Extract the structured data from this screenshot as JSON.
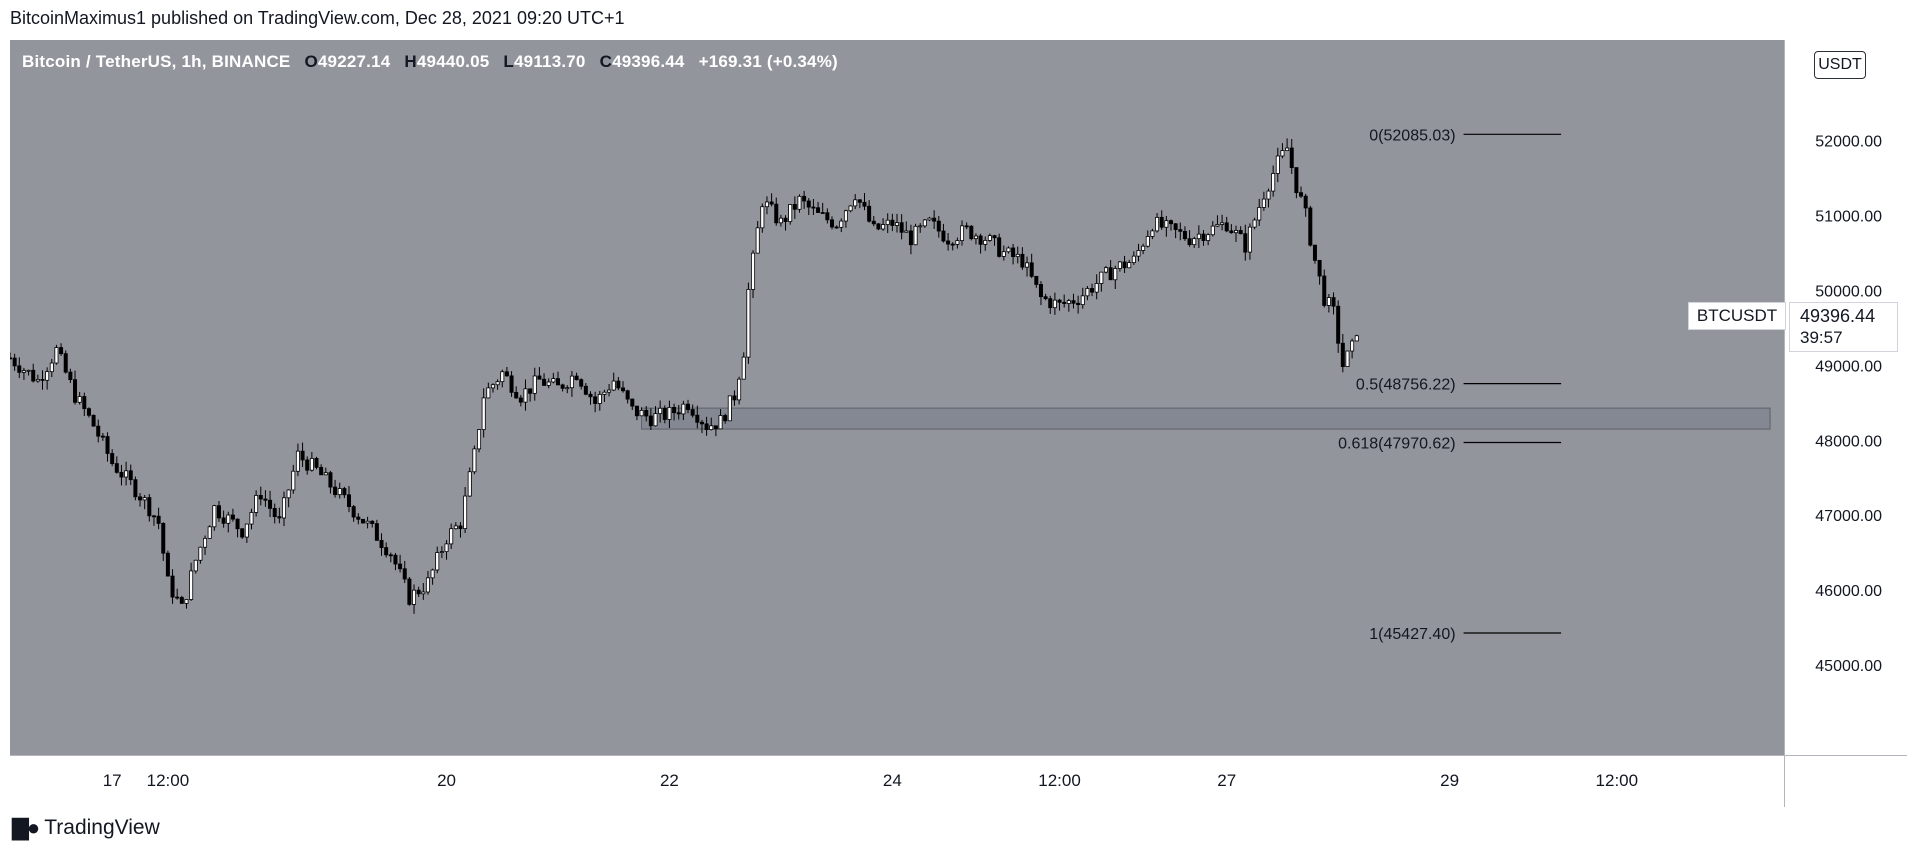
{
  "publisher_line": "BitcoinMaximus1 published on TradingView.com, Dec 28, 2021 09:20 UTC+1",
  "legend": {
    "symbol": "Bitcoin / TetherUS, 1h, BINANCE",
    "open_label": "O",
    "open": "49227.14",
    "high_label": "H",
    "high": "49440.05",
    "low_label": "L",
    "low": "49113.70",
    "close_label": "C",
    "close": "49396.44",
    "change": "+169.31 (+0.34%)"
  },
  "currency": "USDT",
  "last_price_tag": {
    "symbol": "BTCUSDT",
    "price": "49396.44",
    "countdown": "39:57"
  },
  "footer_brand": "TradingView",
  "colors": {
    "chart_background": "#93959d",
    "axis_background": "#ffffff",
    "candle": "#000000",
    "zone_fill": "#848892",
    "zone_border": "#5d6068",
    "fib_line": "#000000"
  },
  "chart_data": {
    "type": "candlestick",
    "interval": "1h",
    "ylim": [
      44800,
      52650
    ],
    "y_ticks": [
      {
        "value": 45000,
        "label": "45000.00"
      },
      {
        "value": 46000,
        "label": "46000.00"
      },
      {
        "value": 47000,
        "label": "47000.00"
      },
      {
        "value": 48000,
        "label": "48000.00"
      },
      {
        "value": 49000,
        "label": "49000.00"
      },
      {
        "value": 50000,
        "label": "50000.00"
      },
      {
        "value": 51000,
        "label": "51000.00"
      },
      {
        "value": 52000,
        "label": "52000.00"
      }
    ],
    "x_ticks": [
      {
        "hour": 0,
        "label": "17"
      },
      {
        "hour": 12,
        "label": "12:00"
      },
      {
        "hour": 72,
        "label": "20"
      },
      {
        "hour": 120,
        "label": "22"
      },
      {
        "hour": 168,
        "label": "24"
      },
      {
        "hour": 204,
        "label": "12:00"
      },
      {
        "hour": 240,
        "label": "27"
      },
      {
        "hour": 288,
        "label": "29"
      },
      {
        "hour": 324,
        "label": "12:00"
      }
    ],
    "x_range_hours": [
      -22,
      360
    ],
    "support_zone": {
      "low": 48150,
      "high": 48430,
      "start_hour": 114,
      "end_hour": 357
    },
    "fib_levels": [
      {
        "label": "0(52085.03)",
        "value": 52085.03,
        "start_hour": 291,
        "end_hour": 312
      },
      {
        "label": "0.5(48756.22)",
        "value": 48756.22,
        "start_hour": 291,
        "end_hour": 312
      },
      {
        "label": "0.618(47970.62)",
        "value": 47970.62,
        "start_hour": 291,
        "end_hour": 312
      },
      {
        "label": "1(45427.40)",
        "value": 45427.4,
        "start_hour": 291,
        "end_hour": 312
      }
    ],
    "price_path": [
      {
        "hour": -22,
        "close": 49100
      },
      {
        "hour": -16,
        "close": 48800
      },
      {
        "hour": -12,
        "close": 49200
      },
      {
        "hour": -8,
        "close": 48600
      },
      {
        "hour": -4,
        "close": 48200
      },
      {
        "hour": 0,
        "close": 47700
      },
      {
        "hour": 5,
        "close": 47350
      },
      {
        "hour": 8,
        "close": 47100
      },
      {
        "hour": 10,
        "close": 46900
      },
      {
        "hour": 12,
        "close": 46100
      },
      {
        "hour": 15,
        "close": 45750
      },
      {
        "hour": 18,
        "close": 46400
      },
      {
        "hour": 22,
        "close": 47100
      },
      {
        "hour": 28,
        "close": 46800
      },
      {
        "hour": 32,
        "close": 47300
      },
      {
        "hour": 36,
        "close": 46900
      },
      {
        "hour": 40,
        "close": 47800
      },
      {
        "hour": 44,
        "close": 47600
      },
      {
        "hour": 50,
        "close": 47200
      },
      {
        "hour": 56,
        "close": 46800
      },
      {
        "hour": 60,
        "close": 46500
      },
      {
        "hour": 64,
        "close": 45900
      },
      {
        "hour": 68,
        "close": 46100
      },
      {
        "hour": 72,
        "close": 46700
      },
      {
        "hour": 75,
        "close": 46900
      },
      {
        "hour": 78,
        "close": 47800
      },
      {
        "hour": 80,
        "close": 48600
      },
      {
        "hour": 84,
        "close": 48900
      },
      {
        "hour": 88,
        "close": 48600
      },
      {
        "hour": 92,
        "close": 48800
      },
      {
        "hour": 96,
        "close": 48700
      },
      {
        "hour": 100,
        "close": 48900
      },
      {
        "hour": 104,
        "close": 48500
      },
      {
        "hour": 108,
        "close": 48800
      },
      {
        "hour": 112,
        "close": 48400
      },
      {
        "hour": 116,
        "close": 48300
      },
      {
        "hour": 120,
        "close": 48350
      },
      {
        "hour": 124,
        "close": 48500
      },
      {
        "hour": 128,
        "close": 48200
      },
      {
        "hour": 131,
        "close": 48250
      },
      {
        "hour": 134,
        "close": 48600
      },
      {
        "hour": 136,
        "close": 49200
      },
      {
        "hour": 137,
        "close": 50000
      },
      {
        "hour": 139,
        "close": 50800
      },
      {
        "hour": 140,
        "close": 51200
      },
      {
        "hour": 144,
        "close": 50900
      },
      {
        "hour": 148,
        "close": 51200
      },
      {
        "hour": 152,
        "close": 51000
      },
      {
        "hour": 156,
        "close": 50900
      },
      {
        "hour": 160,
        "close": 51300
      },
      {
        "hour": 164,
        "close": 50800
      },
      {
        "hour": 168,
        "close": 50900
      },
      {
        "hour": 172,
        "close": 50700
      },
      {
        "hour": 176,
        "close": 50900
      },
      {
        "hour": 180,
        "close": 50700
      },
      {
        "hour": 184,
        "close": 50800
      },
      {
        "hour": 188,
        "close": 50700
      },
      {
        "hour": 192,
        "close": 50500
      },
      {
        "hour": 196,
        "close": 50400
      },
      {
        "hour": 200,
        "close": 49900
      },
      {
        "hour": 204,
        "close": 49800
      },
      {
        "hour": 208,
        "close": 49900
      },
      {
        "hour": 212,
        "close": 50100
      },
      {
        "hour": 216,
        "close": 50300
      },
      {
        "hour": 220,
        "close": 50400
      },
      {
        "hour": 224,
        "close": 50900
      },
      {
        "hour": 228,
        "close": 50800
      },
      {
        "hour": 232,
        "close": 50700
      },
      {
        "hour": 236,
        "close": 50800
      },
      {
        "hour": 240,
        "close": 50900
      },
      {
        "hour": 244,
        "close": 50600
      },
      {
        "hour": 248,
        "close": 51300
      },
      {
        "hour": 251,
        "close": 51700
      },
      {
        "hour": 253,
        "close": 51900
      },
      {
        "hour": 255,
        "close": 51400
      },
      {
        "hour": 257,
        "close": 51000
      },
      {
        "hour": 259,
        "close": 50400
      },
      {
        "hour": 261,
        "close": 49900
      },
      {
        "hour": 263,
        "close": 49700
      },
      {
        "hour": 265,
        "close": 49000
      },
      {
        "hour": 267,
        "close": 49230
      },
      {
        "hour": 268,
        "close": 49396
      }
    ]
  }
}
